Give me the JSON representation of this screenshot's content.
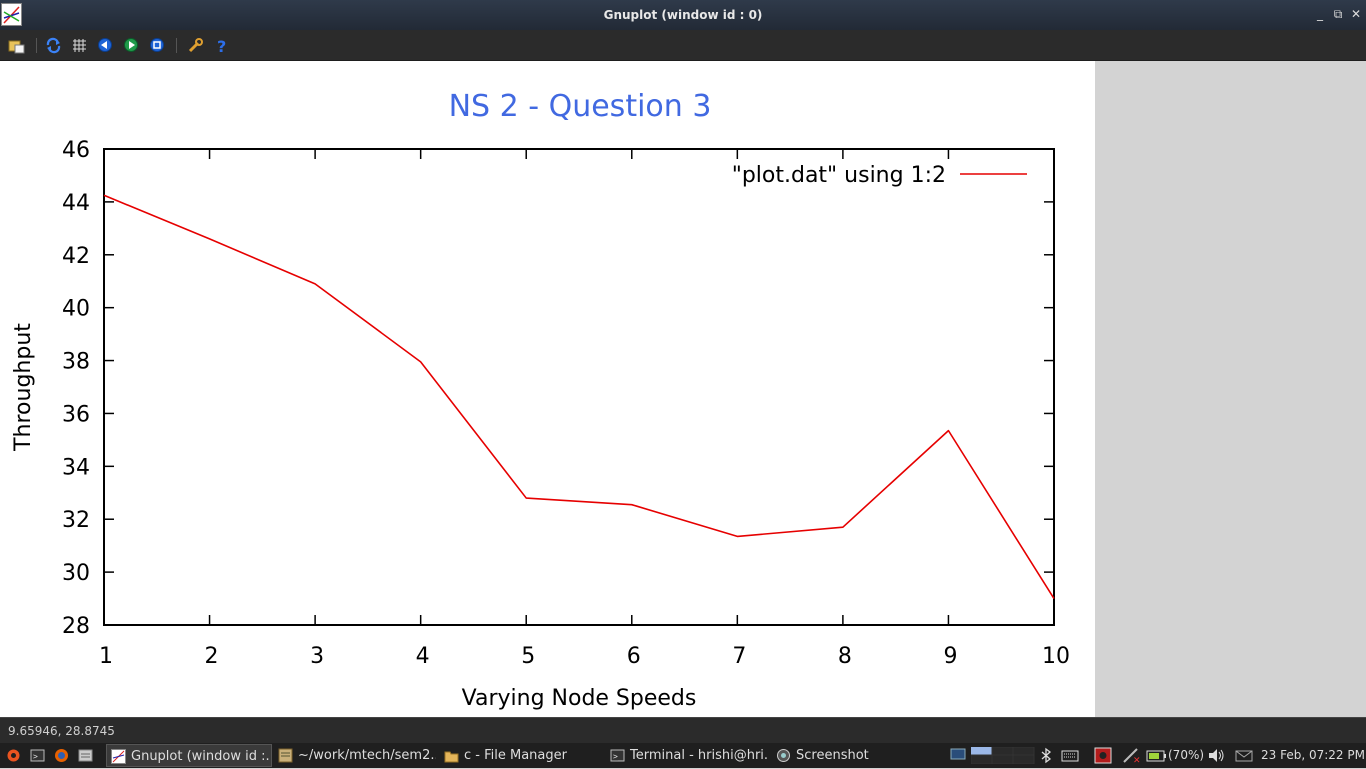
{
  "window": {
    "title": "Gnuplot (window id : 0)",
    "minimize_glyph": "_",
    "maximize_glyph": "⧉",
    "close_glyph": "✕"
  },
  "toolbar": {
    "icons": [
      "export-icon",
      "replot-icon",
      "grid-icon",
      "zoom-previous-icon",
      "zoom-next-icon",
      "autoscale-icon",
      "settings-icon",
      "help-icon"
    ]
  },
  "chart_data": {
    "type": "line",
    "title": "NS 2 - Question 3",
    "xlabel": "Varying Node Speeds",
    "ylabel": "Throughput",
    "xlim": [
      1,
      10
    ],
    "ylim": [
      28,
      46
    ],
    "x_ticks": [
      "1",
      "2",
      "3",
      "4",
      "5",
      "6",
      "7",
      "8",
      "9",
      "10"
    ],
    "y_ticks": [
      "28",
      "30",
      "32",
      "34",
      "36",
      "38",
      "40",
      "42",
      "44",
      "46"
    ],
    "legend_position": "top-right",
    "series": [
      {
        "name": "\"plot.dat\" using 1:2",
        "color": "#e60000",
        "x": [
          1,
          2,
          3,
          4,
          5,
          6,
          7,
          8,
          9,
          10
        ],
        "y": [
          44.25,
          42.6,
          40.9,
          37.95,
          32.8,
          32.55,
          31.35,
          31.7,
          35.35,
          29.0
        ]
      }
    ],
    "title_color": "#4169e1"
  },
  "statusbar": {
    "coordinates": "9.65946,  28.8745"
  },
  "taskbar": {
    "tasks": [
      {
        "label": "Gnuplot (window id :...",
        "active": true
      },
      {
        "label": "~/work/mtech/sem2...",
        "active": false
      },
      {
        "label": "c - File Manager",
        "active": false
      },
      {
        "label": "Terminal - hrishi@hri...",
        "active": false
      },
      {
        "label": "Screenshot",
        "active": false
      }
    ],
    "battery": "(70%)",
    "clock": "23 Feb, 07:22 PM"
  }
}
